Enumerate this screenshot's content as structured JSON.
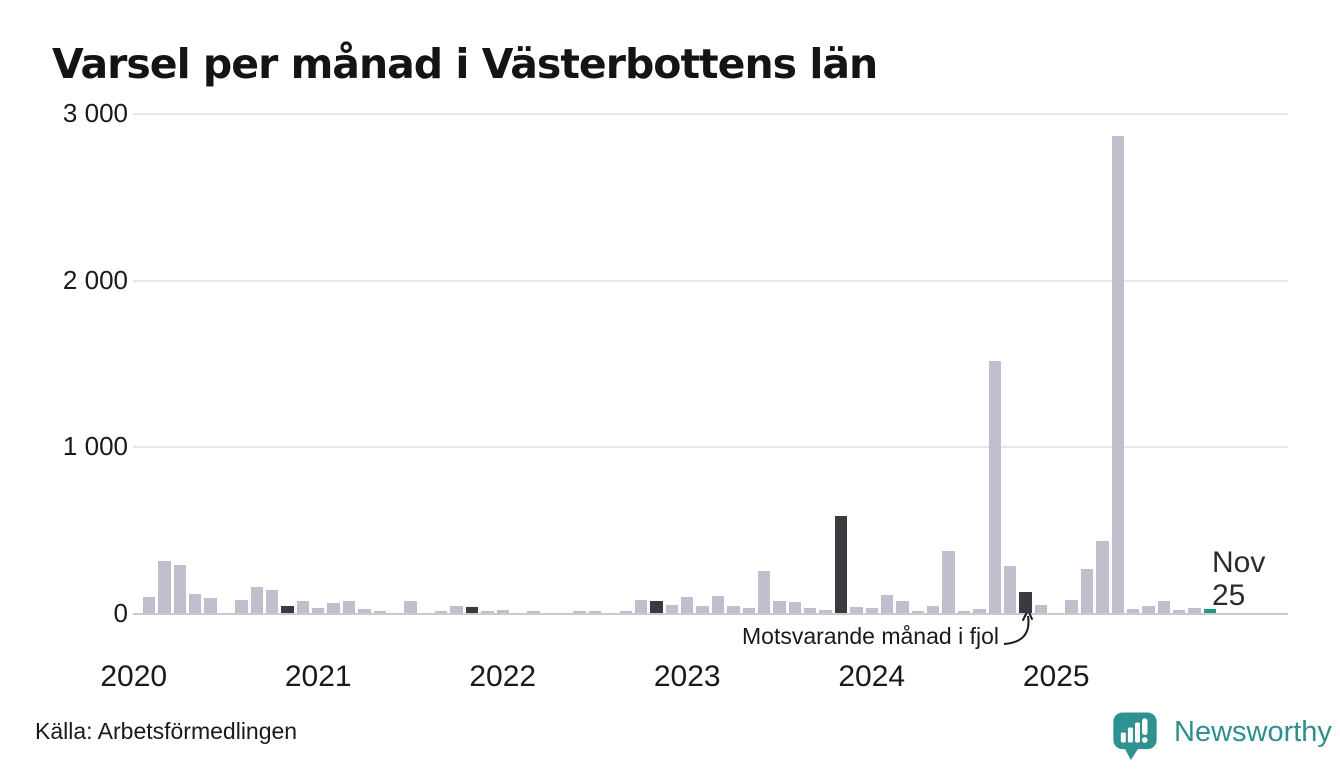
{
  "header": {
    "title": "Varsel per månad i Västerbottens län"
  },
  "annotations": {
    "fjol_label": "Motsvarande månad i fjol",
    "current_month_line1": "Nov",
    "current_month_line2": "25"
  },
  "footer": {
    "source": "Källa: Arbetsförmedlingen",
    "brand_name": "Newsworthy",
    "brand_icon": "newsworthy-pin-bar-chart-icon"
  },
  "chart_data": {
    "type": "bar",
    "title": "Varsel per månad i Västerbottens län",
    "xlabel": "",
    "ylabel": "",
    "ylim": [
      0,
      3000
    ],
    "grid": "horizontal",
    "legend_position": "none",
    "yticks": [
      {
        "value": 0,
        "label": "0"
      },
      {
        "value": 1000,
        "label": "1 000"
      },
      {
        "value": 2000,
        "label": "2 000"
      },
      {
        "value": 3000,
        "label": "3 000"
      }
    ],
    "x_start": "Jan 2020",
    "x_end": "Nov 2025",
    "year_labels": [
      "2020",
      "2021",
      "2022",
      "2023",
      "2024",
      "2025"
    ],
    "year_tick_indices": [
      0,
      12,
      24,
      36,
      48,
      60
    ],
    "values": [
      0,
      95,
      315,
      290,
      115,
      90,
      0,
      80,
      155,
      140,
      45,
      70,
      30,
      60,
      70,
      25,
      10,
      0,
      75,
      0,
      15,
      45,
      35,
      15,
      20,
      0,
      10,
      0,
      0,
      15,
      10,
      0,
      15,
      80,
      70,
      50,
      95,
      45,
      105,
      45,
      30,
      255,
      70,
      65,
      30,
      20,
      585,
      35,
      30,
      110,
      70,
      10,
      45,
      375,
      10,
      25,
      1510,
      285,
      125,
      50,
      0,
      80,
      265,
      435,
      2860,
      25,
      45,
      75,
      20,
      30,
      25
    ],
    "highlight_indices": [
      10,
      22,
      34,
      46,
      58
    ],
    "highlight_meaning": "Motsvarande månad i fjol (november tidigare år)",
    "current_index": 70,
    "current_meaning": "Nov 25",
    "colors": {
      "bar": "#c1bfcd",
      "highlight": "#3b3a3e",
      "current": "#1a9b8a",
      "grid": "#e7e7ea",
      "baseline": "#c9c9ce",
      "brand_teal": "#2e8f8d"
    }
  }
}
